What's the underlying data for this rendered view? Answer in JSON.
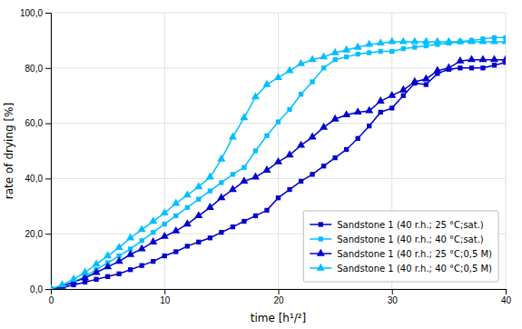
{
  "chart_data": {
    "type": "line",
    "xlabel": "time [h¹/²]",
    "ylabel": "rate of drying [%]",
    "x": [
      0,
      1,
      2,
      3,
      4,
      5,
      6,
      7,
      8,
      9,
      10,
      11,
      12,
      13,
      14,
      15,
      16,
      17,
      18,
      19,
      20,
      21,
      22,
      23,
      24,
      25,
      26,
      27,
      28,
      29,
      30,
      31,
      32,
      33,
      34,
      35,
      36,
      37,
      38,
      39,
      40
    ],
    "xlim": [
      0,
      40
    ],
    "xticks": [
      0,
      10,
      20,
      30,
      40
    ],
    "ylim": [
      0,
      100
    ],
    "yticks": [
      {
        "value": 0.0,
        "label": "0,0"
      },
      {
        "value": 20.0,
        "label": "20,0"
      },
      {
        "value": 40.0,
        "label": "40,0"
      },
      {
        "value": 60.0,
        "label": "60,0"
      },
      {
        "value": 80.0,
        "label": "80,0"
      },
      {
        "value": 100.0,
        "label": "100,0"
      }
    ],
    "grid": true,
    "legend": "lower right",
    "series": [
      {
        "name": "Sandstone 1 (40 r.h.; 25 °C;sat.)",
        "color": "#0000CD",
        "marker": "square",
        "values": [
          0,
          0.5,
          1.5,
          2.5,
          3.5,
          4.5,
          5.5,
          7.0,
          8.5,
          10.0,
          12.0,
          13.5,
          15.5,
          17.0,
          18.5,
          20.5,
          22.5,
          24.5,
          26.5,
          28.5,
          33.0,
          36.0,
          39.0,
          41.5,
          44.5,
          47.5,
          50.5,
          54.5,
          59.0,
          64.0,
          65.5,
          70.0,
          74.5,
          74.0,
          78.0,
          79.5,
          80.0,
          80.0,
          80.0,
          81.0,
          82.0
        ]
      },
      {
        "name": "Sandstone 1 (40 r.h.; 40 °C;sat.)",
        "color": "#00BFFF",
        "marker": "square",
        "values": [
          0,
          1.0,
          2.5,
          4.5,
          7.0,
          9.5,
          12.0,
          14.5,
          17.5,
          20.5,
          23.5,
          26.5,
          29.5,
          32.5,
          35.5,
          38.5,
          41.5,
          44.0,
          50.0,
          55.5,
          60.5,
          65.0,
          70.5,
          75.0,
          80.0,
          83.0,
          84.0,
          85.0,
          85.5,
          86.0,
          86.0,
          87.0,
          87.5,
          88.0,
          88.5,
          89.0,
          89.5,
          90.0,
          90.5,
          91.0,
          91.0
        ]
      },
      {
        "name": "Sandstone 1 (40 r.h.; 25 °C;0,5 M)",
        "color": "#0000CD",
        "marker": "triangle",
        "values": [
          0,
          1.0,
          2.5,
          4.0,
          6.0,
          8.0,
          10.0,
          12.5,
          14.5,
          17.0,
          19.0,
          21.0,
          23.5,
          26.5,
          29.5,
          33.0,
          36.0,
          39.0,
          40.5,
          43.0,
          46.0,
          48.5,
          52.0,
          55.0,
          58.5,
          61.5,
          63.0,
          64.0,
          64.5,
          68.0,
          70.0,
          72.0,
          75.0,
          76.0,
          79.0,
          80.0,
          82.5,
          83.0,
          83.0,
          83.0,
          83.0
        ]
      },
      {
        "name": "Sandstone 1 (40 r.h.; 40 °C;0,5 M)",
        "color": "#00BFFF",
        "marker": "triangle",
        "values": [
          0,
          1.5,
          3.5,
          6.0,
          9.0,
          12.0,
          15.0,
          18.5,
          21.5,
          24.5,
          27.5,
          31.0,
          34.0,
          37.0,
          40.5,
          47.0,
          55.0,
          62.0,
          69.5,
          74.0,
          76.5,
          79.0,
          81.5,
          83.0,
          84.0,
          85.5,
          86.5,
          87.5,
          88.5,
          89.0,
          89.5,
          89.5,
          89.5,
          89.5,
          89.5,
          89.5,
          89.5,
          89.5,
          89.5,
          89.5,
          89.5
        ]
      }
    ]
  }
}
